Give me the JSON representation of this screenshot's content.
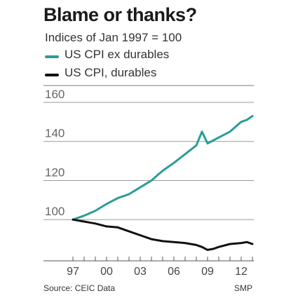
{
  "chart_data": {
    "type": "line",
    "title": "Blame or thanks?",
    "subtitle": "Indices of Jan 1997 = 100",
    "x_ticks": [
      "97",
      "00",
      "03",
      "06",
      "09",
      "12"
    ],
    "y_ticks": [
      100,
      120,
      140,
      160
    ],
    "xlim": [
      1997,
      2013
    ],
    "ylim": [
      85,
      165
    ],
    "grid": true,
    "legend_placement": "top-left",
    "series": [
      {
        "name": "US CPI ex durables",
        "color": "#2a9d98",
        "points": [
          [
            1997,
            100
          ],
          [
            1998,
            102
          ],
          [
            1999,
            104.5
          ],
          [
            2000,
            108
          ],
          [
            2001,
            111
          ],
          [
            2002,
            113
          ],
          [
            2003,
            116.5
          ],
          [
            2004,
            120
          ],
          [
            2005,
            125
          ],
          [
            2006,
            129
          ],
          [
            2007,
            133.5
          ],
          [
            2008,
            138
          ],
          [
            2008.5,
            145
          ],
          [
            2009,
            139
          ],
          [
            2009.5,
            140.5
          ],
          [
            2010,
            142
          ],
          [
            2011,
            145
          ],
          [
            2012,
            150
          ],
          [
            2012.5,
            151
          ],
          [
            2013,
            153
          ]
        ]
      },
      {
        "name": "US CPI, durables",
        "color": "#111111",
        "points": [
          [
            1997,
            100
          ],
          [
            1998,
            99
          ],
          [
            1999,
            98
          ],
          [
            2000,
            96.5
          ],
          [
            2001,
            96
          ],
          [
            2002,
            94
          ],
          [
            2003,
            92
          ],
          [
            2004,
            90
          ],
          [
            2005,
            89
          ],
          [
            2006,
            88.5
          ],
          [
            2007,
            88
          ],
          [
            2008,
            87
          ],
          [
            2008.5,
            86
          ],
          [
            2009,
            84.5
          ],
          [
            2009.5,
            85
          ],
          [
            2010,
            86
          ],
          [
            2011,
            87.5
          ],
          [
            2012,
            88
          ],
          [
            2012.5,
            88.5
          ],
          [
            2013,
            87.5
          ]
        ]
      }
    ]
  },
  "footer": {
    "source": "Source: CEIC Data",
    "brand": "SMP"
  }
}
